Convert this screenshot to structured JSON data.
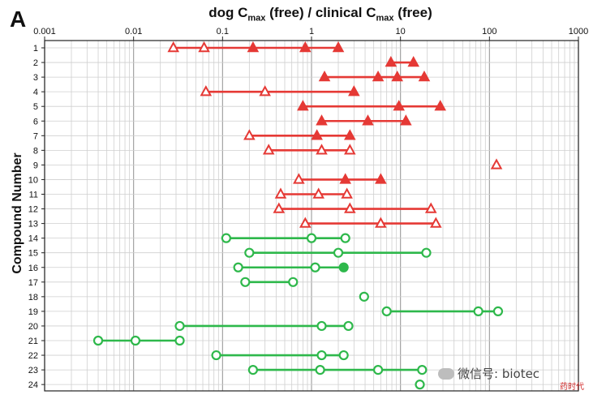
{
  "panel_letter": "A",
  "title_parts": {
    "pre": "dog C",
    "sub1": "max",
    "mid": " (free) / clinical C",
    "sub2": "max",
    "post": " (free)"
  },
  "watermark": {
    "text": "微信号: biotec",
    "logo_text": "药时代"
  },
  "colors": {
    "red": "#e53935",
    "green": "#2eb84b",
    "grid_major": "#9a9a9a",
    "grid_minor": "#cfcfcf",
    "axis": "#222222"
  },
  "chart_data": {
    "type": "scatter",
    "title": "dog Cmax (free) / clinical Cmax (free)",
    "xlabel": "",
    "ylabel": "Compound Number",
    "x_scale": "log",
    "xlim": [
      0.001,
      1000
    ],
    "x_ticks": [
      "0.001",
      "0.01",
      "0.1",
      "1",
      "10",
      "100",
      "1000"
    ],
    "grid": true,
    "categories": [
      "1",
      "2",
      "3",
      "4",
      "5",
      "6",
      "7",
      "8",
      "9",
      "10",
      "11",
      "12",
      "13",
      "14",
      "15",
      "16",
      "17",
      "18",
      "19",
      "20",
      "21",
      "22",
      "23",
      "24"
    ],
    "series": [
      {
        "color": "red",
        "marker": "triangle",
        "compounds": [
          {
            "id": "1",
            "points": [
              {
                "x": 0.028,
                "filled": false
              },
              {
                "x": 0.062,
                "filled": false
              },
              {
                "x": 0.22,
                "filled": true
              },
              {
                "x": 0.85,
                "filled": true
              },
              {
                "x": 2.0,
                "filled": true
              }
            ]
          },
          {
            "id": "2",
            "points": [
              {
                "x": 7.8,
                "filled": true
              },
              {
                "x": 14,
                "filled": true
              }
            ]
          },
          {
            "id": "3",
            "points": [
              {
                "x": 1.4,
                "filled": true
              },
              {
                "x": 5.6,
                "filled": true
              },
              {
                "x": 9.2,
                "filled": true
              },
              {
                "x": 18.5,
                "filled": true
              }
            ]
          },
          {
            "id": "4",
            "points": [
              {
                "x": 0.065,
                "filled": false
              },
              {
                "x": 0.3,
                "filled": false
              },
              {
                "x": 3.0,
                "filled": true
              }
            ]
          },
          {
            "id": "5",
            "points": [
              {
                "x": 0.8,
                "filled": true
              },
              {
                "x": 9.6,
                "filled": true
              },
              {
                "x": 28,
                "filled": true
              }
            ]
          },
          {
            "id": "6",
            "points": [
              {
                "x": 1.3,
                "filled": true
              },
              {
                "x": 4.3,
                "filled": true
              },
              {
                "x": 11.5,
                "filled": true
              }
            ]
          },
          {
            "id": "7",
            "points": [
              {
                "x": 0.2,
                "filled": false
              },
              {
                "x": 1.15,
                "filled": true
              },
              {
                "x": 2.7,
                "filled": true
              }
            ]
          },
          {
            "id": "8",
            "points": [
              {
                "x": 0.33,
                "filled": false
              },
              {
                "x": 1.3,
                "filled": false
              },
              {
                "x": 2.7,
                "filled": false
              }
            ]
          },
          {
            "id": "9",
            "points": [
              {
                "x": 120,
                "filled": false
              }
            ]
          },
          {
            "id": "10",
            "points": [
              {
                "x": 0.72,
                "filled": false
              },
              {
                "x": 2.4,
                "filled": true
              },
              {
                "x": 6.0,
                "filled": true
              }
            ]
          },
          {
            "id": "11",
            "points": [
              {
                "x": 0.45,
                "filled": false
              },
              {
                "x": 1.2,
                "filled": false
              },
              {
                "x": 2.5,
                "filled": false
              }
            ]
          },
          {
            "id": "12",
            "points": [
              {
                "x": 0.43,
                "filled": false
              },
              {
                "x": 2.7,
                "filled": false
              },
              {
                "x": 22,
                "filled": false
              }
            ]
          },
          {
            "id": "13",
            "points": [
              {
                "x": 0.85,
                "filled": false
              },
              {
                "x": 6.0,
                "filled": false
              },
              {
                "x": 25,
                "filled": false
              }
            ]
          }
        ]
      },
      {
        "color": "green",
        "marker": "circle",
        "compounds": [
          {
            "id": "14",
            "points": [
              {
                "x": 0.11,
                "filled": false
              },
              {
                "x": 1.0,
                "filled": false
              },
              {
                "x": 2.4,
                "filled": false
              }
            ]
          },
          {
            "id": "15",
            "points": [
              {
                "x": 0.2,
                "filled": false
              },
              {
                "x": 2.0,
                "filled": false
              },
              {
                "x": 19.5,
                "filled": false
              }
            ]
          },
          {
            "id": "16",
            "points": [
              {
                "x": 0.15,
                "filled": false
              },
              {
                "x": 1.1,
                "filled": false
              },
              {
                "x": 2.3,
                "filled": true
              }
            ]
          },
          {
            "id": "17",
            "points": [
              {
                "x": 0.18,
                "filled": false
              },
              {
                "x": 0.62,
                "filled": false
              }
            ]
          },
          {
            "id": "18",
            "points": [
              {
                "x": 3.9,
                "filled": false
              }
            ]
          },
          {
            "id": "19",
            "points": [
              {
                "x": 7.0,
                "filled": false
              },
              {
                "x": 75,
                "filled": false
              },
              {
                "x": 125,
                "filled": false
              }
            ]
          },
          {
            "id": "20",
            "points": [
              {
                "x": 0.033,
                "filled": false
              },
              {
                "x": 1.3,
                "filled": false
              },
              {
                "x": 2.6,
                "filled": false
              }
            ]
          },
          {
            "id": "21",
            "points": [
              {
                "x": 0.004,
                "filled": false
              },
              {
                "x": 0.0105,
                "filled": false
              },
              {
                "x": 0.033,
                "filled": false
              }
            ]
          },
          {
            "id": "22",
            "points": [
              {
                "x": 0.085,
                "filled": false
              },
              {
                "x": 1.3,
                "filled": false
              },
              {
                "x": 2.3,
                "filled": false
              }
            ]
          },
          {
            "id": "23",
            "points": [
              {
                "x": 0.22,
                "filled": false
              },
              {
                "x": 1.25,
                "filled": false
              },
              {
                "x": 5.6,
                "filled": false
              },
              {
                "x": 17.5,
                "filled": false
              }
            ]
          },
          {
            "id": "24",
            "points": [
              {
                "x": 16.5,
                "filled": false
              }
            ]
          }
        ]
      }
    ]
  }
}
